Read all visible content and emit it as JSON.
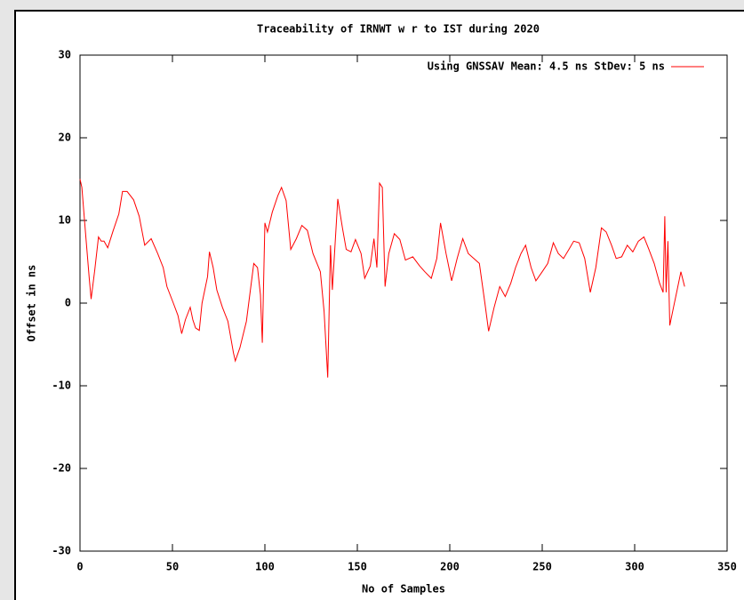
{
  "chart_data": {
    "type": "line",
    "title": "Traceability of IRNWT w r to IST during 2020",
    "xlabel": "No of Samples",
    "ylabel": "Offset in ns",
    "x": [
      0,
      1,
      3,
      5,
      6,
      8,
      10,
      11.5,
      13,
      15,
      18,
      21,
      23,
      25.5,
      29,
      32,
      35,
      38.5,
      42,
      45,
      47,
      50.5,
      53,
      55,
      57,
      59.6,
      61,
      62.5,
      64.5,
      66,
      69,
      70,
      72,
      74,
      77,
      80,
      83,
      84,
      86.5,
      90,
      94,
      96,
      97.6,
      98.6,
      100,
      101.4,
      104,
      107,
      109,
      111.5,
      114,
      117,
      120,
      123,
      126,
      130,
      132,
      134,
      135.5,
      136.5,
      137.5,
      139.4,
      142,
      144,
      146.6,
      149,
      152,
      154,
      157,
      159,
      160.6,
      162,
      163.5,
      165,
      167,
      170,
      173,
      176,
      180,
      183.7,
      186.5,
      190,
      193,
      195,
      198,
      201,
      204,
      207,
      210,
      213,
      216,
      219,
      221,
      224,
      227,
      230,
      233,
      235.6,
      238.5,
      241,
      244,
      246.6,
      250,
      253,
      256,
      258.7,
      261.5,
      264.4,
      267,
      270,
      273,
      276,
      279,
      282,
      284.6,
      287.5,
      290,
      293,
      296,
      299,
      302,
      305,
      307.7,
      310.6,
      313.5,
      315.4,
      316.3,
      317,
      318,
      319,
      321,
      323,
      325,
      327
    ],
    "series": [
      {
        "name": "Using GNSSAV Mean: 4.5 ns StDev: 5 ns",
        "color": "#ff0000",
        "values": [
          15,
          14,
          8.5,
          3,
          0.5,
          4,
          8,
          7.5,
          7.5,
          6.7,
          8.8,
          10.8,
          13.5,
          13.5,
          12.5,
          10.5,
          7,
          7.8,
          6,
          4.3,
          2,
          0,
          -1.5,
          -3.7,
          -2,
          -0.5,
          -2,
          -3,
          -3.3,
          0,
          3.2,
          6.2,
          4.3,
          1.6,
          -0.5,
          -2.2,
          -6,
          -7,
          -5.4,
          -2.2,
          4.8,
          4.3,
          1,
          -4.8,
          9.7,
          8.6,
          11,
          13,
          14,
          12.4,
          6.5,
          7.8,
          9.4,
          8.8,
          6,
          3.8,
          -1,
          -9,
          7,
          1.6,
          5.4,
          12.6,
          9,
          6.5,
          6.2,
          7.7,
          6,
          3,
          4.5,
          7.8,
          4.3,
          14.5,
          14,
          2,
          6,
          8.4,
          7.7,
          5.2,
          5.6,
          4.5,
          3.8,
          3,
          5.4,
          9.7,
          6,
          2.7,
          5.4,
          7.8,
          6,
          5.4,
          4.8,
          0,
          -3.4,
          -0.5,
          2,
          0.8,
          2.4,
          4.3,
          6,
          7,
          4.3,
          2.7,
          3.8,
          4.8,
          7.3,
          6,
          5.4,
          6.5,
          7.5,
          7.3,
          5.4,
          1.3,
          4.3,
          9.1,
          8.6,
          7,
          5.4,
          5.6,
          7,
          6.2,
          7.5,
          8,
          6.5,
          4.8,
          2.4,
          1.3,
          10.5,
          1.3,
          7.5,
          -2.7,
          -0.5,
          1.6,
          3.8,
          2
        ]
      }
    ],
    "xlim": [
      0,
      350
    ],
    "xticks": [
      0,
      50,
      100,
      150,
      200,
      250,
      300,
      350
    ],
    "ylim": [
      -30,
      30
    ],
    "yticks": [
      -30,
      -20,
      -10,
      0,
      10,
      20,
      30
    ],
    "legend": "top-right"
  }
}
